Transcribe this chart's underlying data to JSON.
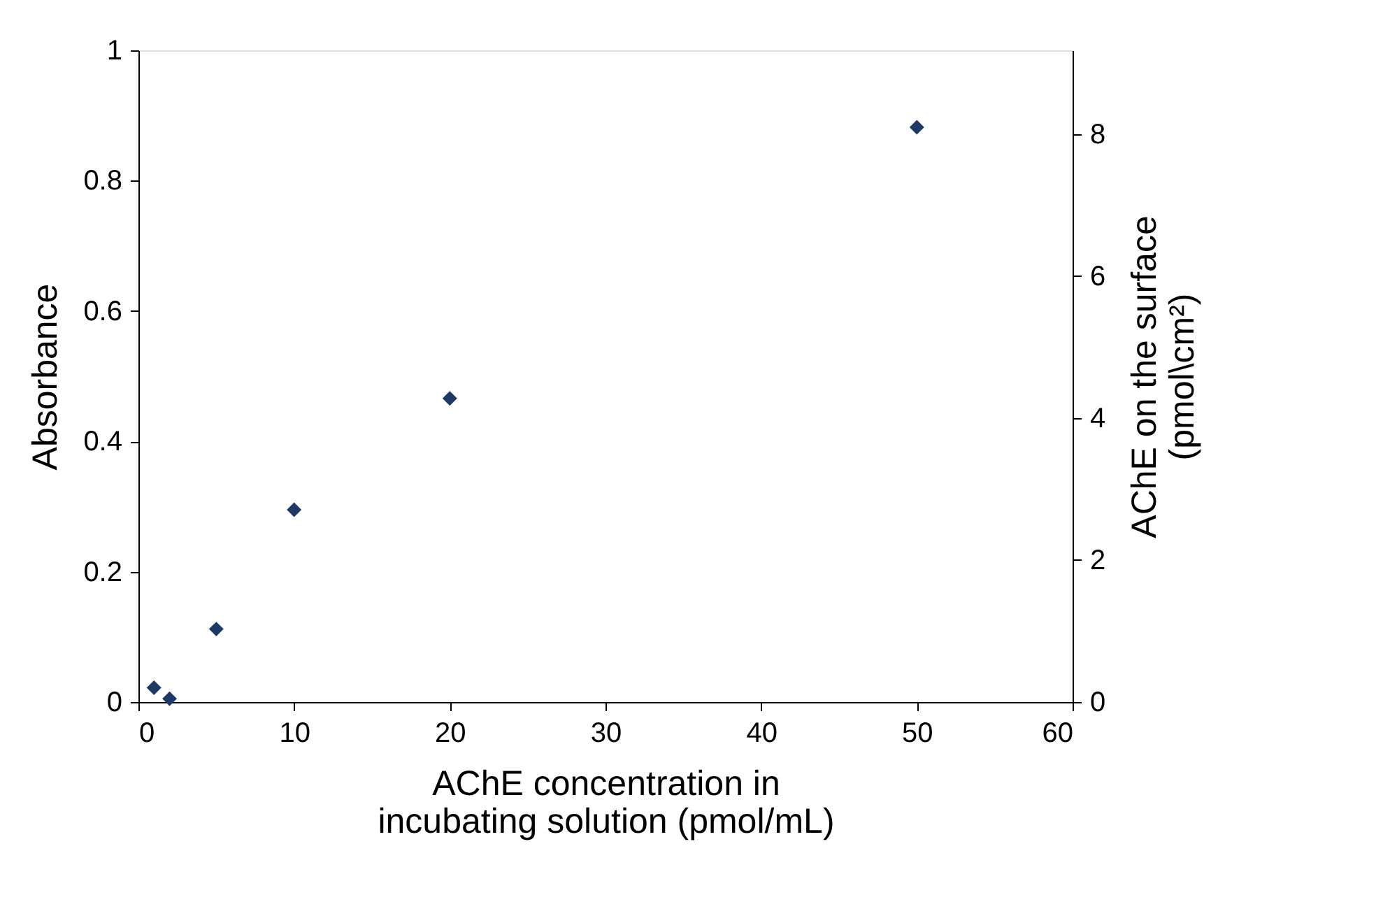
{
  "chart_data": {
    "type": "scatter",
    "xlabel": "AChE concentration in\nincubating solution (pmol/mL)",
    "ylabel": "Absorbance",
    "y2label": "AChE on the surface\n(pmol\\cm²)",
    "x": [
      1,
      2,
      5,
      10,
      20,
      50
    ],
    "series": [
      {
        "color": "#1f3864",
        "values": [
          0.022,
          0.005,
          0.112,
          0.295,
          0.466,
          0.882
        ]
      }
    ],
    "xlim": [
      0,
      60
    ],
    "xticks": [
      0,
      10,
      20,
      30,
      40,
      50,
      60
    ],
    "ylim": [
      0,
      1
    ],
    "yticks": [
      0,
      0.2,
      0.4,
      0.6,
      0.8,
      1
    ],
    "y2lim": [
      0,
      9.18
    ],
    "y2ticks": [
      0,
      2,
      4,
      6,
      8
    ],
    "marker": "diamond",
    "grid": false
  }
}
